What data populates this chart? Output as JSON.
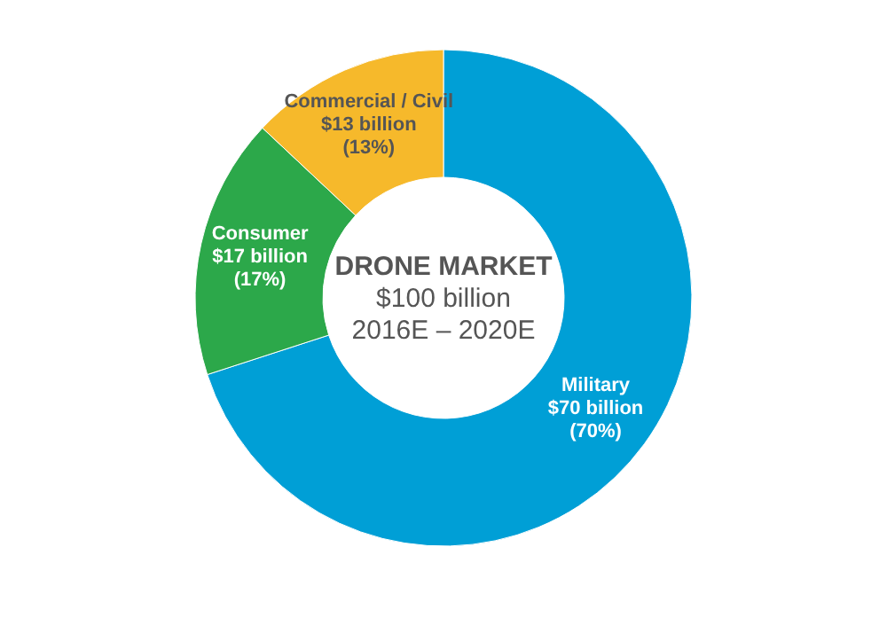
{
  "chart_data": {
    "type": "donut",
    "title": "DRONE MARKET",
    "subtitle": "$100 billion",
    "annotations": [
      "2016E – 2020E"
    ],
    "categories": [
      "Military",
      "Consumer",
      "Commercial / Civil"
    ],
    "values": [
      70,
      17,
      13
    ],
    "value_labels": [
      "$70 billion\n(70%)",
      "$17 billion\n(17%)",
      "$13 billion\n(13%)"
    ],
    "colors": [
      "#009fd6",
      "#2ca84a",
      "#f6b92b"
    ]
  }
}
